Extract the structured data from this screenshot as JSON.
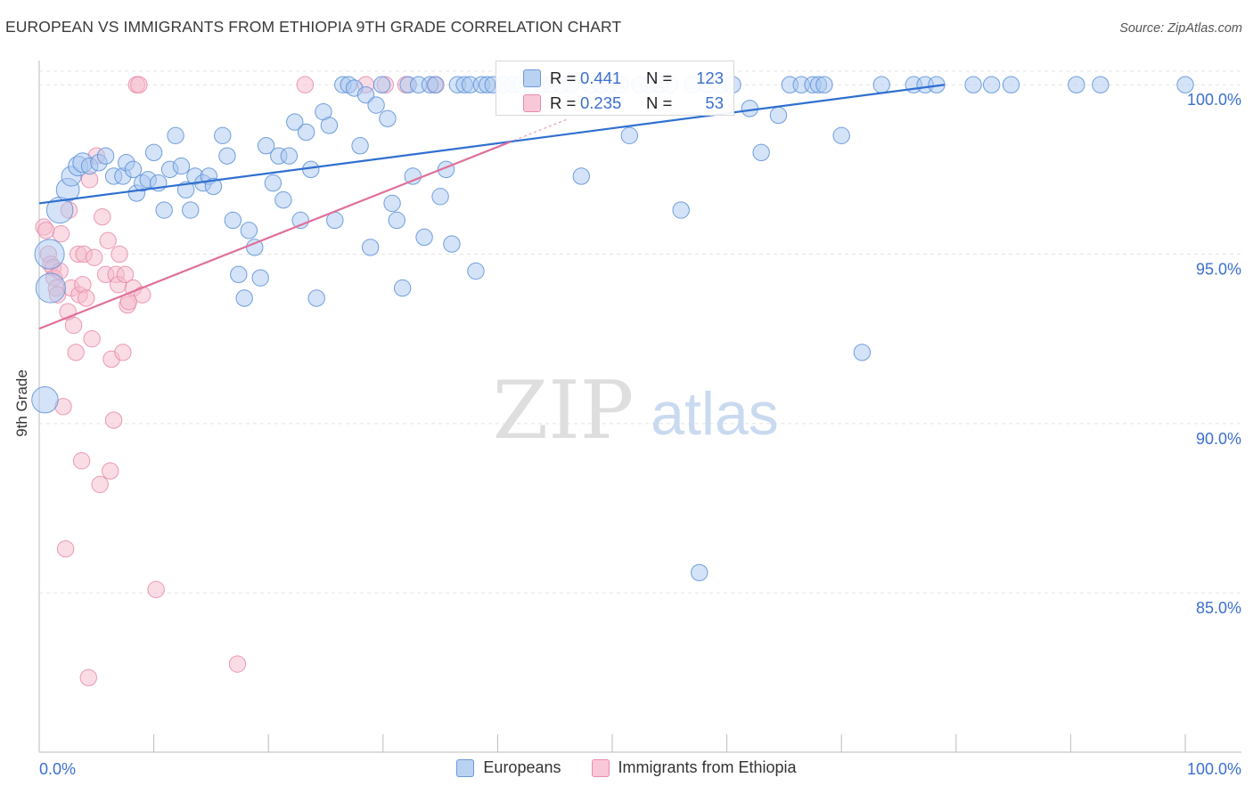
{
  "title": "EUROPEAN VS IMMIGRANTS FROM ETHIOPIA 9TH GRADE CORRELATION CHART",
  "source": "Source: ZipAtlas.com",
  "watermark": {
    "zip": "ZIP",
    "atlas": "atlas"
  },
  "colors": {
    "blue_fill": "#a9c7ef",
    "blue_stroke": "#5b8fd8",
    "blue_line": "#2f6fd0",
    "pink_fill": "#f6b9cc",
    "pink_stroke": "#e88aa8",
    "pink_line": "#e0709a",
    "axis_text_blue": "#3b6fcf",
    "grid": "#e3e3e3"
  },
  "legend": {
    "europeans": {
      "r_label": "R = ",
      "r_value": "0.441",
      "n_label": "N = ",
      "n_value": "123"
    },
    "ethiopia": {
      "r_label": "R = ",
      "r_value": "0.235",
      "n_label": "N = ",
      "n_value": "53"
    }
  },
  "chart_data": {
    "type": "scatter",
    "title": "EUROPEAN VS IMMIGRANTS FROM ETHIOPIA 9TH GRADE CORRELATION CHART",
    "xlabel": "",
    "ylabel": "9th Grade",
    "xlim": [
      0,
      100
    ],
    "ylim": [
      80.3,
      100.4
    ],
    "x_tick_labels": [
      "0.0%",
      "100.0%"
    ],
    "y_ticks": [
      85,
      90,
      95,
      100
    ],
    "y_tick_labels": [
      "85.0%",
      "90.0%",
      "95.0%",
      "100.0%"
    ],
    "grid": true,
    "legend_position": "bottom-center",
    "series": [
      {
        "name": "Europeans",
        "r": 0.441,
        "n": 123,
        "trend": {
          "x0": 0,
          "y0": 96.5,
          "x1": 79,
          "y1": 100.0
        },
        "points": [
          [
            0.5,
            90.7,
            16
          ],
          [
            0.9,
            95.0,
            18
          ],
          [
            1.0,
            94.0,
            18
          ],
          [
            1.8,
            96.3,
            16
          ],
          [
            2.5,
            96.9,
            14
          ],
          [
            2.8,
            97.3,
            12
          ],
          [
            3.4,
            97.6,
            12
          ],
          [
            3.8,
            97.7,
            12
          ],
          [
            4.4,
            97.6,
            10
          ],
          [
            5.2,
            97.7,
            10
          ],
          [
            5.8,
            97.9,
            10
          ],
          [
            6.5,
            97.3,
            10
          ],
          [
            7.3,
            97.3,
            10
          ],
          [
            7.6,
            97.7,
            10
          ],
          [
            8.2,
            97.5,
            10
          ],
          [
            8.5,
            96.8,
            10
          ],
          [
            9.0,
            97.1,
            10
          ],
          [
            9.5,
            97.2,
            10
          ],
          [
            10.0,
            98.0,
            10
          ],
          [
            10.4,
            97.1,
            10
          ],
          [
            10.9,
            96.3,
            10
          ],
          [
            11.4,
            97.5,
            10
          ],
          [
            11.9,
            98.5,
            10
          ],
          [
            12.4,
            97.6,
            10
          ],
          [
            12.8,
            96.9,
            10
          ],
          [
            13.2,
            96.3,
            10
          ],
          [
            13.6,
            97.3,
            10
          ],
          [
            14.3,
            97.1,
            10
          ],
          [
            14.8,
            97.3,
            10
          ],
          [
            15.2,
            97.0,
            10
          ],
          [
            16.0,
            98.5,
            10
          ],
          [
            16.4,
            97.9,
            10
          ],
          [
            16.9,
            96.0,
            10
          ],
          [
            17.4,
            94.4,
            10
          ],
          [
            17.9,
            93.7,
            10
          ],
          [
            18.3,
            95.7,
            10
          ],
          [
            18.8,
            95.2,
            10
          ],
          [
            19.3,
            94.3,
            10
          ],
          [
            19.8,
            98.2,
            10
          ],
          [
            20.4,
            97.1,
            10
          ],
          [
            20.9,
            97.9,
            10
          ],
          [
            21.3,
            96.6,
            10
          ],
          [
            21.8,
            97.9,
            10
          ],
          [
            22.3,
            98.9,
            10
          ],
          [
            22.8,
            96.0,
            10
          ],
          [
            23.3,
            98.6,
            10
          ],
          [
            23.7,
            97.5,
            10
          ],
          [
            24.2,
            93.7,
            10
          ],
          [
            24.8,
            99.2,
            10
          ],
          [
            25.3,
            98.8,
            10
          ],
          [
            25.8,
            96.0,
            10
          ],
          [
            26.5,
            100.0,
            10
          ],
          [
            27.0,
            100.0,
            10
          ],
          [
            27.5,
            99.9,
            10
          ],
          [
            28.0,
            98.2,
            10
          ],
          [
            28.5,
            99.7,
            10
          ],
          [
            28.9,
            95.2,
            10
          ],
          [
            29.4,
            99.4,
            10
          ],
          [
            29.9,
            100.0,
            10
          ],
          [
            30.4,
            99.0,
            10
          ],
          [
            30.8,
            96.5,
            10
          ],
          [
            31.2,
            96.0,
            10
          ],
          [
            31.7,
            94.0,
            10
          ],
          [
            32.2,
            100.0,
            10
          ],
          [
            32.6,
            97.3,
            10
          ],
          [
            33.1,
            100.0,
            10
          ],
          [
            33.6,
            95.5,
            10
          ],
          [
            34.1,
            100.0,
            10
          ],
          [
            34.6,
            100.0,
            10
          ],
          [
            35.0,
            96.7,
            10
          ],
          [
            35.5,
            97.5,
            10
          ],
          [
            36.0,
            95.3,
            10
          ],
          [
            36.5,
            100.0,
            10
          ],
          [
            37.1,
            100.0,
            10
          ],
          [
            37.6,
            100.0,
            10
          ],
          [
            38.1,
            94.5,
            10
          ],
          [
            38.6,
            100.0,
            10
          ],
          [
            39.1,
            100.0,
            10
          ],
          [
            39.6,
            100.0,
            10
          ],
          [
            40.5,
            100.0,
            10
          ],
          [
            41.3,
            100.0,
            10
          ],
          [
            42.1,
            100.0,
            10
          ],
          [
            43.0,
            100.0,
            10
          ],
          [
            43.9,
            100.0,
            10
          ],
          [
            44.7,
            100.0,
            10
          ],
          [
            45.6,
            100.0,
            10
          ],
          [
            46.4,
            100.0,
            10
          ],
          [
            47.3,
            97.3,
            10
          ],
          [
            48.1,
            100.0,
            10
          ],
          [
            49.0,
            100.0,
            10
          ],
          [
            49.8,
            100.0,
            10
          ],
          [
            50.7,
            100.0,
            10
          ],
          [
            51.5,
            98.5,
            10
          ],
          [
            52.4,
            100.0,
            10
          ],
          [
            53.2,
            100.0,
            10
          ],
          [
            54.1,
            100.0,
            10
          ],
          [
            55.0,
            100.0,
            10
          ],
          [
            56.0,
            96.3,
            10
          ],
          [
            57.0,
            100.0,
            10
          ],
          [
            57.6,
            85.6,
            10
          ],
          [
            58.3,
            100.0,
            10
          ],
          [
            59.5,
            100.0,
            10
          ],
          [
            60.5,
            100.0,
            10
          ],
          [
            62.0,
            99.3,
            10
          ],
          [
            63.0,
            98.0,
            10
          ],
          [
            64.5,
            99.1,
            10
          ],
          [
            65.5,
            100.0,
            10
          ],
          [
            66.5,
            100.0,
            10
          ],
          [
            67.5,
            100.0,
            10
          ],
          [
            68.0,
            100.0,
            10
          ],
          [
            68.5,
            100.0,
            10
          ],
          [
            70.0,
            98.5,
            10
          ],
          [
            71.8,
            92.1,
            10
          ],
          [
            73.5,
            100.0,
            10
          ],
          [
            76.3,
            100.0,
            10
          ],
          [
            77.3,
            100.0,
            10
          ],
          [
            78.3,
            100.0,
            10
          ],
          [
            81.5,
            100.0,
            10
          ],
          [
            83.1,
            100.0,
            10
          ],
          [
            84.8,
            100.0,
            10
          ],
          [
            90.5,
            100.0,
            10
          ],
          [
            92.6,
            100.0,
            10
          ],
          [
            100.0,
            100.0,
            10
          ]
        ]
      },
      {
        "name": "Immigrants from Ethiopia",
        "r": 0.235,
        "n": 53,
        "trend": {
          "x0": 0,
          "y0": 92.8,
          "x1": 41,
          "y1": 98.3
        },
        "points": [
          [
            0.4,
            95.8,
            10
          ],
          [
            0.6,
            95.7,
            10
          ],
          [
            0.8,
            95.0,
            10
          ],
          [
            1.0,
            94.7,
            10
          ],
          [
            1.2,
            94.6,
            10
          ],
          [
            1.3,
            94.3,
            10
          ],
          [
            1.5,
            94.0,
            10
          ],
          [
            1.6,
            93.8,
            10
          ],
          [
            1.8,
            94.5,
            10
          ],
          [
            1.9,
            95.6,
            10
          ],
          [
            2.1,
            90.5,
            10
          ],
          [
            2.3,
            86.3,
            10
          ],
          [
            2.5,
            93.3,
            10
          ],
          [
            2.6,
            96.3,
            10
          ],
          [
            2.8,
            94.0,
            10
          ],
          [
            3.0,
            92.9,
            10
          ],
          [
            3.2,
            92.1,
            10
          ],
          [
            3.4,
            95.0,
            10
          ],
          [
            3.5,
            93.8,
            10
          ],
          [
            3.7,
            88.9,
            10
          ],
          [
            3.8,
            94.1,
            10
          ],
          [
            3.9,
            95.0,
            10
          ],
          [
            4.1,
            93.7,
            10
          ],
          [
            4.3,
            82.5,
            10
          ],
          [
            4.4,
            97.2,
            10
          ],
          [
            4.6,
            92.5,
            10
          ],
          [
            4.8,
            94.9,
            10
          ],
          [
            5.0,
            97.9,
            10
          ],
          [
            5.3,
            88.2,
            10
          ],
          [
            5.5,
            96.1,
            10
          ],
          [
            5.8,
            94.4,
            10
          ],
          [
            6.0,
            95.4,
            10
          ],
          [
            6.2,
            88.6,
            10
          ],
          [
            6.3,
            91.9,
            10
          ],
          [
            6.5,
            90.1,
            10
          ],
          [
            6.7,
            94.4,
            10
          ],
          [
            6.9,
            94.1,
            10
          ],
          [
            7.0,
            95.0,
            10
          ],
          [
            7.3,
            92.1,
            10
          ],
          [
            7.5,
            94.4,
            10
          ],
          [
            7.7,
            93.5,
            10
          ],
          [
            7.8,
            93.6,
            10
          ],
          [
            8.2,
            94.0,
            10
          ],
          [
            8.5,
            100.0,
            10
          ],
          [
            8.7,
            100.0,
            10
          ],
          [
            9.0,
            93.8,
            10
          ],
          [
            10.2,
            85.1,
            10
          ],
          [
            17.3,
            82.9,
            10
          ],
          [
            23.2,
            100.0,
            10
          ],
          [
            28.5,
            100.0,
            10
          ],
          [
            30.2,
            100.0,
            10
          ],
          [
            32.0,
            100.0,
            10
          ],
          [
            34.5,
            100.0,
            10
          ]
        ]
      }
    ]
  }
}
